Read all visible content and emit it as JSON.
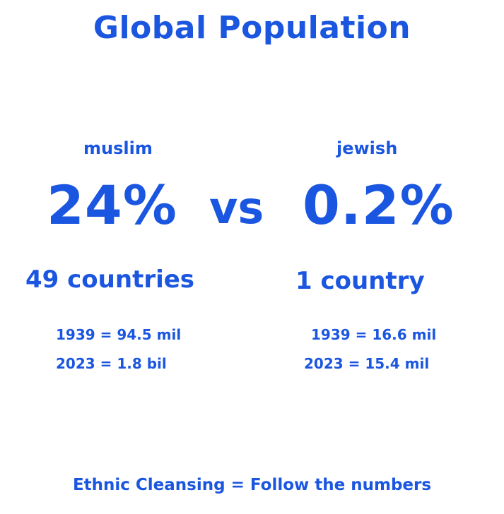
{
  "title": "Global Population",
  "left": {
    "label": "muslim",
    "percent": "24%",
    "countries": "49 countries",
    "stats": [
      "1939 = 94.5 mil",
      "2023 = 1.8 bil"
    ]
  },
  "vs": "vs",
  "right": {
    "label": "jewish",
    "percent": "0.2%",
    "countries": "1 country",
    "stats": [
      "1939 = 16.6 mil",
      "2023 = 15.4 mil"
    ]
  },
  "footer": "Ethnic Cleansing = Follow the numbers",
  "colors": {
    "text": "#1b56e0",
    "background": "#ffffff"
  }
}
